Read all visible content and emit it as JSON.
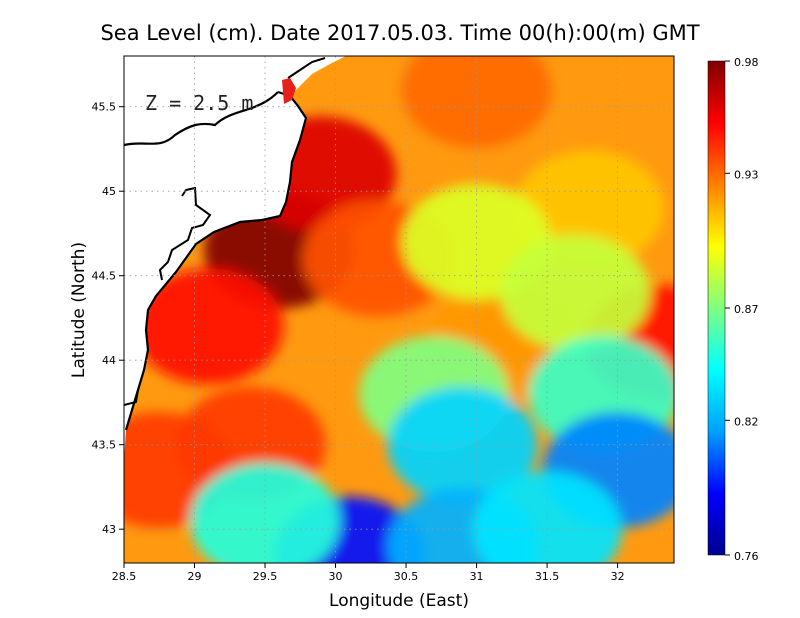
{
  "chart_data": {
    "type": "heatmap",
    "title": "Sea Level (cm). Date 2017.05.03. Time 00(h):00(m) GMT",
    "annotation": "Z = 2.5 m",
    "xlabel": "Longitude (East)",
    "ylabel": "Latitude (North)",
    "xlim": [
      28.5,
      32.4
    ],
    "ylim": [
      42.8,
      45.8
    ],
    "x_ticks": [
      28.5,
      29,
      29.5,
      30,
      30.5,
      31,
      31.5,
      32
    ],
    "x_tick_labels": [
      "28.5",
      "29",
      "29.5",
      "30",
      "30.5",
      "31",
      "31.5",
      "32"
    ],
    "y_ticks": [
      43,
      43.5,
      44,
      44.5,
      45,
      45.5
    ],
    "y_tick_labels": [
      "43",
      "43.5",
      "44",
      "44.5",
      "45",
      "45.5"
    ],
    "grid": true,
    "colorbar": {
      "range": [
        0.76,
        0.98
      ],
      "ticks": [
        0.76,
        0.82,
        0.87,
        0.93,
        0.98
      ],
      "tick_labels": [
        "0.76",
        "0.82",
        "0.87",
        "0.93",
        "0.98"
      ],
      "colors": [
        "#00008f",
        "#0000ff",
        "#00a0ff",
        "#00ffff",
        "#80ff80",
        "#ffff00",
        "#ff8000",
        "#ff0000",
        "#800000"
      ]
    },
    "field_samples": [
      {
        "lon": 29.6,
        "lat": 44.65,
        "value": 0.98
      },
      {
        "lon": 29.9,
        "lat": 45.1,
        "value": 0.96
      },
      {
        "lon": 29.1,
        "lat": 44.2,
        "value": 0.95
      },
      {
        "lon": 29.4,
        "lat": 43.5,
        "value": 0.94
      },
      {
        "lon": 28.75,
        "lat": 43.35,
        "value": 0.94
      },
      {
        "lon": 30.3,
        "lat": 44.6,
        "value": 0.935
      },
      {
        "lon": 31.0,
        "lat": 45.6,
        "value": 0.93
      },
      {
        "lon": 32.3,
        "lat": 44.1,
        "value": 0.95
      },
      {
        "lon": 31.2,
        "lat": 44.1,
        "value": 0.92
      },
      {
        "lon": 31.8,
        "lat": 44.9,
        "value": 0.91
      },
      {
        "lon": 31.0,
        "lat": 44.7,
        "value": 0.89
      },
      {
        "lon": 31.7,
        "lat": 44.4,
        "value": 0.885
      },
      {
        "lon": 30.7,
        "lat": 43.8,
        "value": 0.87
      },
      {
        "lon": 31.9,
        "lat": 43.8,
        "value": 0.855
      },
      {
        "lon": 30.9,
        "lat": 43.5,
        "value": 0.83
      },
      {
        "lon": 32.0,
        "lat": 43.35,
        "value": 0.81
      },
      {
        "lon": 30.1,
        "lat": 42.85,
        "value": 0.79
      },
      {
        "lon": 30.9,
        "lat": 42.9,
        "value": 0.82
      },
      {
        "lon": 29.5,
        "lat": 43.05,
        "value": 0.85
      },
      {
        "lon": 31.5,
        "lat": 43.0,
        "value": 0.835
      }
    ]
  }
}
